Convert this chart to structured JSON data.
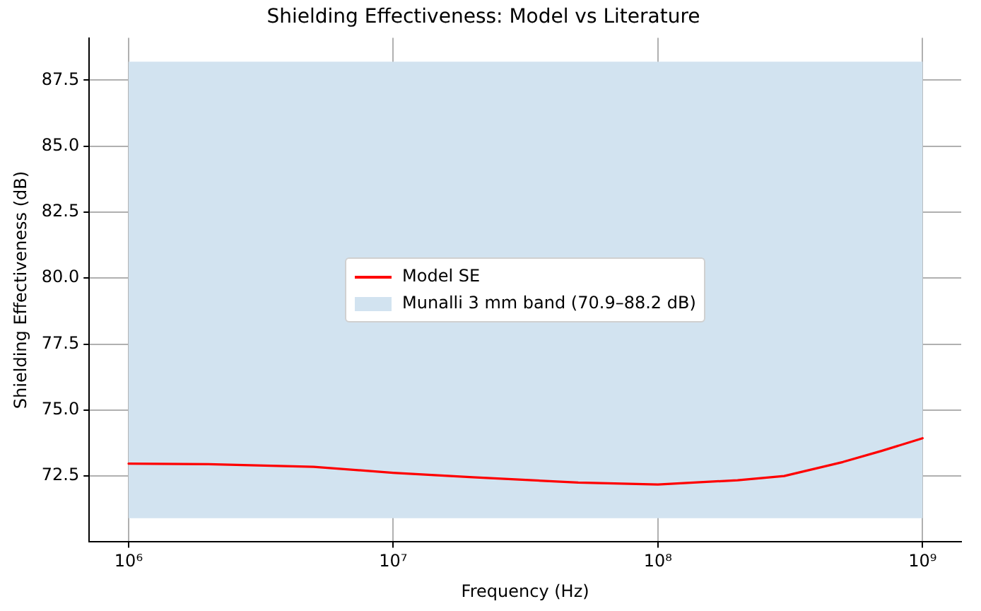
{
  "chart_data": {
    "type": "line",
    "title": "Shielding Effectiveness: Model vs Literature",
    "xlabel": "Frequency (Hz)",
    "ylabel": "Shielding Effectiveness (dB)",
    "log": "x",
    "xlim": [
      710000,
      1400000000
    ],
    "xticks": [
      {
        "value": 1000000,
        "label": "10⁶"
      },
      {
        "value": 10000000,
        "label": "10⁷"
      },
      {
        "value": 100000000,
        "label": "10⁸"
      },
      {
        "value": 1000000000,
        "label": "10⁹"
      }
    ],
    "ylim": [
      70.0,
      89.1
    ],
    "yticks": [
      {
        "value": 72.5,
        "label": "72.5"
      },
      {
        "value": 75,
        "label": "75.0"
      },
      {
        "value": 77.5,
        "label": "77.5"
      },
      {
        "value": 80,
        "label": "80.0"
      },
      {
        "value": 82.5,
        "label": "82.5"
      },
      {
        "value": 85,
        "label": "85.0"
      },
      {
        "value": 87.5,
        "label": "87.5"
      }
    ],
    "series": [
      {
        "name": "Model SE",
        "color": "#ff0000",
        "x": [
          1000000,
          2000000,
          5000000,
          10000000,
          20000000,
          50000000,
          100000000,
          200000000,
          300000000,
          500000000,
          700000000,
          1000000000
        ],
        "values": [
          72.97,
          72.95,
          72.85,
          72.62,
          72.45,
          72.25,
          72.18,
          72.34,
          72.5,
          73.03,
          73.45,
          73.93
        ]
      }
    ],
    "bands": [
      {
        "axis": "y",
        "from": 70.9,
        "to": 88.2,
        "label": "Munalli 3 mm band (70.9–88.2 dB)",
        "color": "#d2e3f0"
      }
    ],
    "grid": true,
    "legend": "center",
    "marker": "none",
    "line_style": "solid"
  }
}
